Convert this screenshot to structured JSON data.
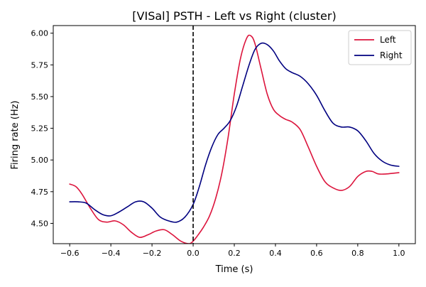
{
  "chart_data": {
    "type": "line",
    "title": "[VISal] PSTH - Left vs Right (cluster)",
    "xlabel": "Time (s)",
    "ylabel": "Firing rate (Hz)",
    "xlim": [
      -0.68,
      1.08
    ],
    "ylim": [
      4.34,
      6.06
    ],
    "xticks": [
      -0.6,
      -0.4,
      -0.2,
      0.0,
      0.2,
      0.4,
      0.6,
      0.8,
      1.0
    ],
    "xtick_labels": [
      "−0.6",
      "−0.4",
      "−0.2",
      "0.0",
      "0.2",
      "0.4",
      "0.6",
      "0.8",
      "1.0"
    ],
    "yticks": [
      4.5,
      4.75,
      5.0,
      5.25,
      5.5,
      5.75,
      6.0
    ],
    "ytick_labels": [
      "4.50",
      "4.75",
      "5.00",
      "5.25",
      "5.50",
      "5.75",
      "6.00"
    ],
    "grid": false,
    "legend": "top-right",
    "vline": {
      "x": 0.0,
      "style": "dashed",
      "color": "#000000"
    },
    "series": [
      {
        "name": "Left",
        "color": "#dc143c",
        "x": [
          -0.6,
          -0.57,
          -0.54,
          -0.5,
          -0.46,
          -0.42,
          -0.38,
          -0.34,
          -0.3,
          -0.26,
          -0.22,
          -0.18,
          -0.14,
          -0.1,
          -0.06,
          -0.02,
          0.0,
          0.02,
          0.05,
          0.08,
          0.11,
          0.14,
          0.17,
          0.2,
          0.23,
          0.26,
          0.28,
          0.3,
          0.33,
          0.36,
          0.39,
          0.42,
          0.45,
          0.48,
          0.52,
          0.56,
          0.6,
          0.64,
          0.68,
          0.72,
          0.76,
          0.8,
          0.84,
          0.87,
          0.9,
          0.94,
          1.0
        ],
        "values": [
          4.81,
          4.79,
          4.73,
          4.62,
          4.53,
          4.51,
          4.52,
          4.49,
          4.43,
          4.39,
          4.41,
          4.44,
          4.45,
          4.41,
          4.36,
          4.34,
          4.36,
          4.4,
          4.47,
          4.56,
          4.7,
          4.9,
          5.18,
          5.52,
          5.8,
          5.96,
          5.98,
          5.92,
          5.72,
          5.52,
          5.4,
          5.35,
          5.32,
          5.3,
          5.24,
          5.1,
          4.95,
          4.83,
          4.78,
          4.76,
          4.79,
          4.87,
          4.91,
          4.91,
          4.89,
          4.89,
          4.9
        ]
      },
      {
        "name": "Right",
        "color": "#000080",
        "x": [
          -0.6,
          -0.56,
          -0.52,
          -0.48,
          -0.44,
          -0.4,
          -0.36,
          -0.32,
          -0.28,
          -0.24,
          -0.2,
          -0.16,
          -0.12,
          -0.08,
          -0.04,
          0.0,
          0.03,
          0.06,
          0.09,
          0.12,
          0.15,
          0.18,
          0.21,
          0.24,
          0.27,
          0.3,
          0.33,
          0.36,
          0.39,
          0.42,
          0.45,
          0.48,
          0.52,
          0.56,
          0.6,
          0.64,
          0.68,
          0.72,
          0.76,
          0.8,
          0.84,
          0.88,
          0.92,
          0.96,
          1.0
        ],
        "values": [
          4.67,
          4.67,
          4.66,
          4.61,
          4.57,
          4.56,
          4.59,
          4.63,
          4.67,
          4.67,
          4.62,
          4.55,
          4.52,
          4.51,
          4.55,
          4.65,
          4.79,
          4.96,
          5.1,
          5.2,
          5.25,
          5.31,
          5.42,
          5.58,
          5.74,
          5.87,
          5.92,
          5.91,
          5.86,
          5.78,
          5.72,
          5.69,
          5.66,
          5.6,
          5.51,
          5.39,
          5.29,
          5.26,
          5.26,
          5.23,
          5.15,
          5.05,
          4.99,
          4.96,
          4.95
        ]
      }
    ]
  }
}
